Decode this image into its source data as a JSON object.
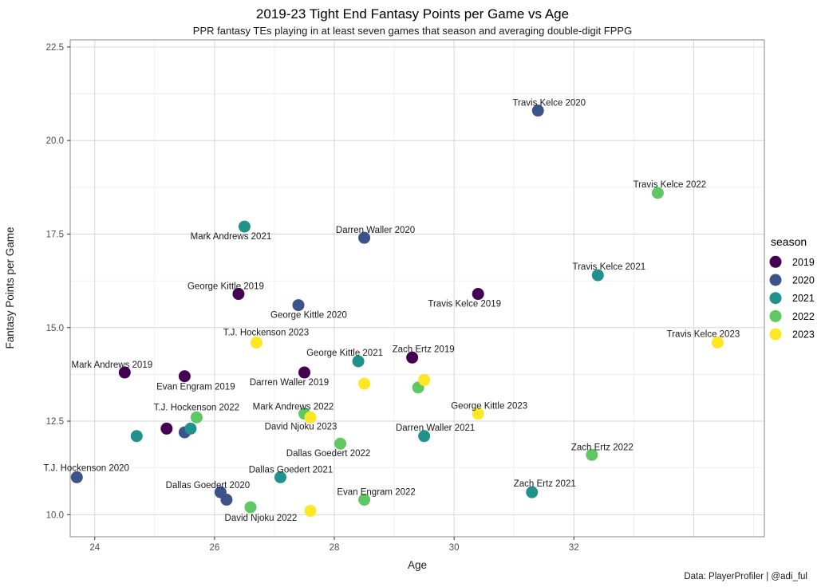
{
  "title": "2019-23 Tight End Fantasy Points per Game vs Age",
  "subtitle": "PPR fantasy TEs playing in at least seven games that season and averaging double-digit FPPG",
  "caption": "Data: PlayerProfiler | @adi_ful",
  "chart_data": {
    "type": "scatter",
    "xlabel": "Age",
    "ylabel": "Fantasy Points per Game",
    "x_ticks": [
      24,
      26,
      28,
      30,
      32
    ],
    "x_tick_labels": [
      "24",
      "26",
      "28",
      "30",
      "32"
    ],
    "y_ticks": [
      10.0,
      12.5,
      15.0,
      17.5,
      20.0,
      22.5
    ],
    "y_tick_labels": [
      "10.0",
      "12.5",
      "15.0",
      "17.5",
      "20.0",
      "22.5"
    ],
    "xlim": [
      23.59,
      35.18
    ],
    "ylim": [
      9.41,
      22.69
    ],
    "grid": true,
    "x_major_grid": [
      24,
      26,
      28,
      30,
      32,
      34
    ],
    "x_minor_grid": [
      25,
      27,
      29,
      31,
      33,
      35
    ],
    "y_major_grid": [
      10.0,
      12.5,
      15.0,
      17.5,
      20.0,
      22.5
    ],
    "y_minor_grid": [
      11.25,
      13.75,
      16.25,
      18.75,
      21.25
    ],
    "point_radius": 7.5,
    "colors": {
      "grid_major": "#d6d6d6",
      "grid_minor": "#e9e9e9",
      "panel_border": "#8a8a8a",
      "tick": "#333333",
      "tick_label": "#4d4d4d",
      "text": "#1a1a1a"
    },
    "legend": {
      "title": "season",
      "position": "right",
      "entries": [
        {
          "label": "2019",
          "color": "#440154"
        },
        {
          "label": "2020",
          "color": "#3b528b"
        },
        {
          "label": "2021",
          "color": "#21918c"
        },
        {
          "label": "2022",
          "color": "#5ec962"
        },
        {
          "label": "2023",
          "color": "#fde725"
        }
      ]
    },
    "series": [
      {
        "name": "2019",
        "color": "#440154",
        "points": [
          {
            "x": 24.5,
            "y": 13.8,
            "label": "Mark Andrews 2019",
            "dx": -16,
            "dy": -10
          },
          {
            "x": 25.2,
            "y": 12.3
          },
          {
            "x": 25.5,
            "y": 13.7,
            "label": "Evan Engram 2019",
            "dx": 14,
            "dy": 13
          },
          {
            "x": 26.4,
            "y": 15.9,
            "label": "George Kittle 2019",
            "dx": -16,
            "dy": -10
          },
          {
            "x": 27.5,
            "y": 13.8,
            "label": "Darren Waller 2019",
            "dx": -19,
            "dy": 12
          },
          {
            "x": 29.3,
            "y": 14.2,
            "label": "Zach Ertz 2019",
            "dx": 14,
            "dy": -11
          },
          {
            "x": 30.4,
            "y": 15.9,
            "label": "Travis Kelce 2019",
            "dx": -17,
            "dy": 12
          }
        ]
      },
      {
        "name": "2020",
        "color": "#3b528b",
        "points": [
          {
            "x": 23.7,
            "y": 11.0,
            "label": "T.J. Hockenson 2020",
            "dx": 12,
            "dy": -12
          },
          {
            "x": 25.5,
            "y": 12.2
          },
          {
            "x": 26.1,
            "y": 10.6,
            "label": "Dallas Goedert 2020",
            "dx": -16,
            "dy": -9
          },
          {
            "x": 26.2,
            "y": 10.4
          },
          {
            "x": 27.4,
            "y": 15.6,
            "label": "George Kittle 2020",
            "dx": 13,
            "dy": 12
          },
          {
            "x": 28.5,
            "y": 17.4,
            "label": "Darren Waller 2020",
            "dx": 14,
            "dy": -10
          },
          {
            "x": 31.4,
            "y": 20.8,
            "label": "Travis Kelce 2020",
            "dx": 14,
            "dy": -10
          }
        ]
      },
      {
        "name": "2021",
        "color": "#21918c",
        "points": [
          {
            "x": 24.7,
            "y": 12.1
          },
          {
            "x": 25.6,
            "y": 12.3
          },
          {
            "x": 26.5,
            "y": 17.7,
            "label": "Mark Andrews 2021",
            "dx": -17,
            "dy": 12
          },
          {
            "x": 27.1,
            "y": 11.0,
            "label": "Dallas Goedert 2021",
            "dx": 13,
            "dy": -10
          },
          {
            "x": 28.4,
            "y": 14.1,
            "label": "George Kittle 2021",
            "dx": -17,
            "dy": -11
          },
          {
            "x": 29.5,
            "y": 12.1,
            "label": "Darren Waller 2021",
            "dx": 14,
            "dy": -11
          },
          {
            "x": 31.3,
            "y": 10.6,
            "label": "Zach Ertz 2021",
            "dx": 16,
            "dy": -11
          },
          {
            "x": 32.4,
            "y": 16.4,
            "label": "Travis Kelce 2021",
            "dx": 14,
            "dy": -11
          }
        ]
      },
      {
        "name": "2022",
        "color": "#5ec962",
        "points": [
          {
            "x": 25.7,
            "y": 12.6,
            "label": "T.J. Hockenson 2022",
            "dx": 0,
            "dy": -13
          },
          {
            "x": 26.6,
            "y": 10.2,
            "label": "David Njoku 2022",
            "dx": 13,
            "dy": 13
          },
          {
            "x": 27.5,
            "y": 12.7,
            "label": "Mark Andrews 2022",
            "dx": -14,
            "dy": -9
          },
          {
            "x": 28.1,
            "y": 11.9,
            "label": "Dallas Goedert 2022",
            "dx": -15,
            "dy": 12
          },
          {
            "x": 28.5,
            "y": 10.4,
            "label": "Evan Engram 2022",
            "dx": 15,
            "dy": -10
          },
          {
            "x": 29.4,
            "y": 13.4
          },
          {
            "x": 32.3,
            "y": 11.6,
            "label": "Zach Ertz 2022",
            "dx": 13,
            "dy": -10
          },
          {
            "x": 33.4,
            "y": 18.6,
            "label": "Travis Kelce 2022",
            "dx": 15,
            "dy": -11
          }
        ]
      },
      {
        "name": "2023",
        "color": "#fde725",
        "points": [
          {
            "x": 26.7,
            "y": 14.6,
            "label": "T.J. Hockenson 2023",
            "dx": 12,
            "dy": -13
          },
          {
            "x": 27.6,
            "y": 10.1
          },
          {
            "x": 27.6,
            "y": 12.6,
            "label": "David Njoku 2023",
            "dx": -12,
            "dy": 11
          },
          {
            "x": 28.5,
            "y": 13.5
          },
          {
            "x": 29.5,
            "y": 13.6
          },
          {
            "x": 30.4,
            "y": 12.7,
            "label": "George Kittle 2023",
            "dx": 14,
            "dy": -10
          },
          {
            "x": 34.4,
            "y": 14.6,
            "label": "Travis Kelce 2023",
            "dx": -18,
            "dy": -11
          }
        ]
      }
    ]
  }
}
